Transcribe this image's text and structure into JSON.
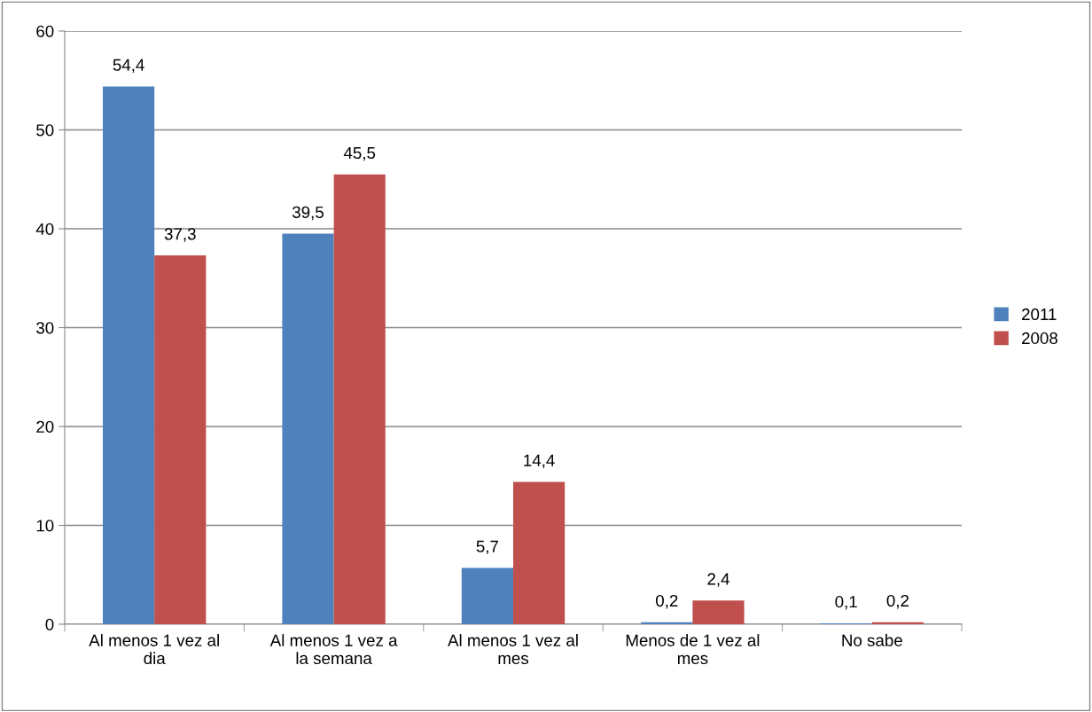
{
  "chart_data": {
    "type": "bar",
    "categories": [
      "Al menos 1 vez al\ndia",
      "Al menos 1 vez a\nla semana",
      "Al menos 1 vez al\nmes",
      "Menos de 1 vez al\nmes",
      "No sabe"
    ],
    "series": [
      {
        "name": "2011",
        "color": "#4f81bd",
        "values": [
          54.4,
          39.5,
          5.7,
          0.2,
          0.1
        ],
        "value_labels": [
          "54,4",
          "39,5",
          "5,7",
          "0,2",
          "0,1"
        ]
      },
      {
        "name": "2008",
        "color": "#c0504d",
        "values": [
          37.3,
          45.5,
          14.4,
          2.4,
          0.2
        ],
        "value_labels": [
          "37,3",
          "45,5",
          "14,4",
          "2,4",
          "0,2"
        ]
      }
    ],
    "ylim": [
      0,
      60
    ],
    "yticks": [
      0,
      10,
      20,
      30,
      40,
      50,
      60
    ],
    "grid": "y",
    "legend": "right"
  }
}
